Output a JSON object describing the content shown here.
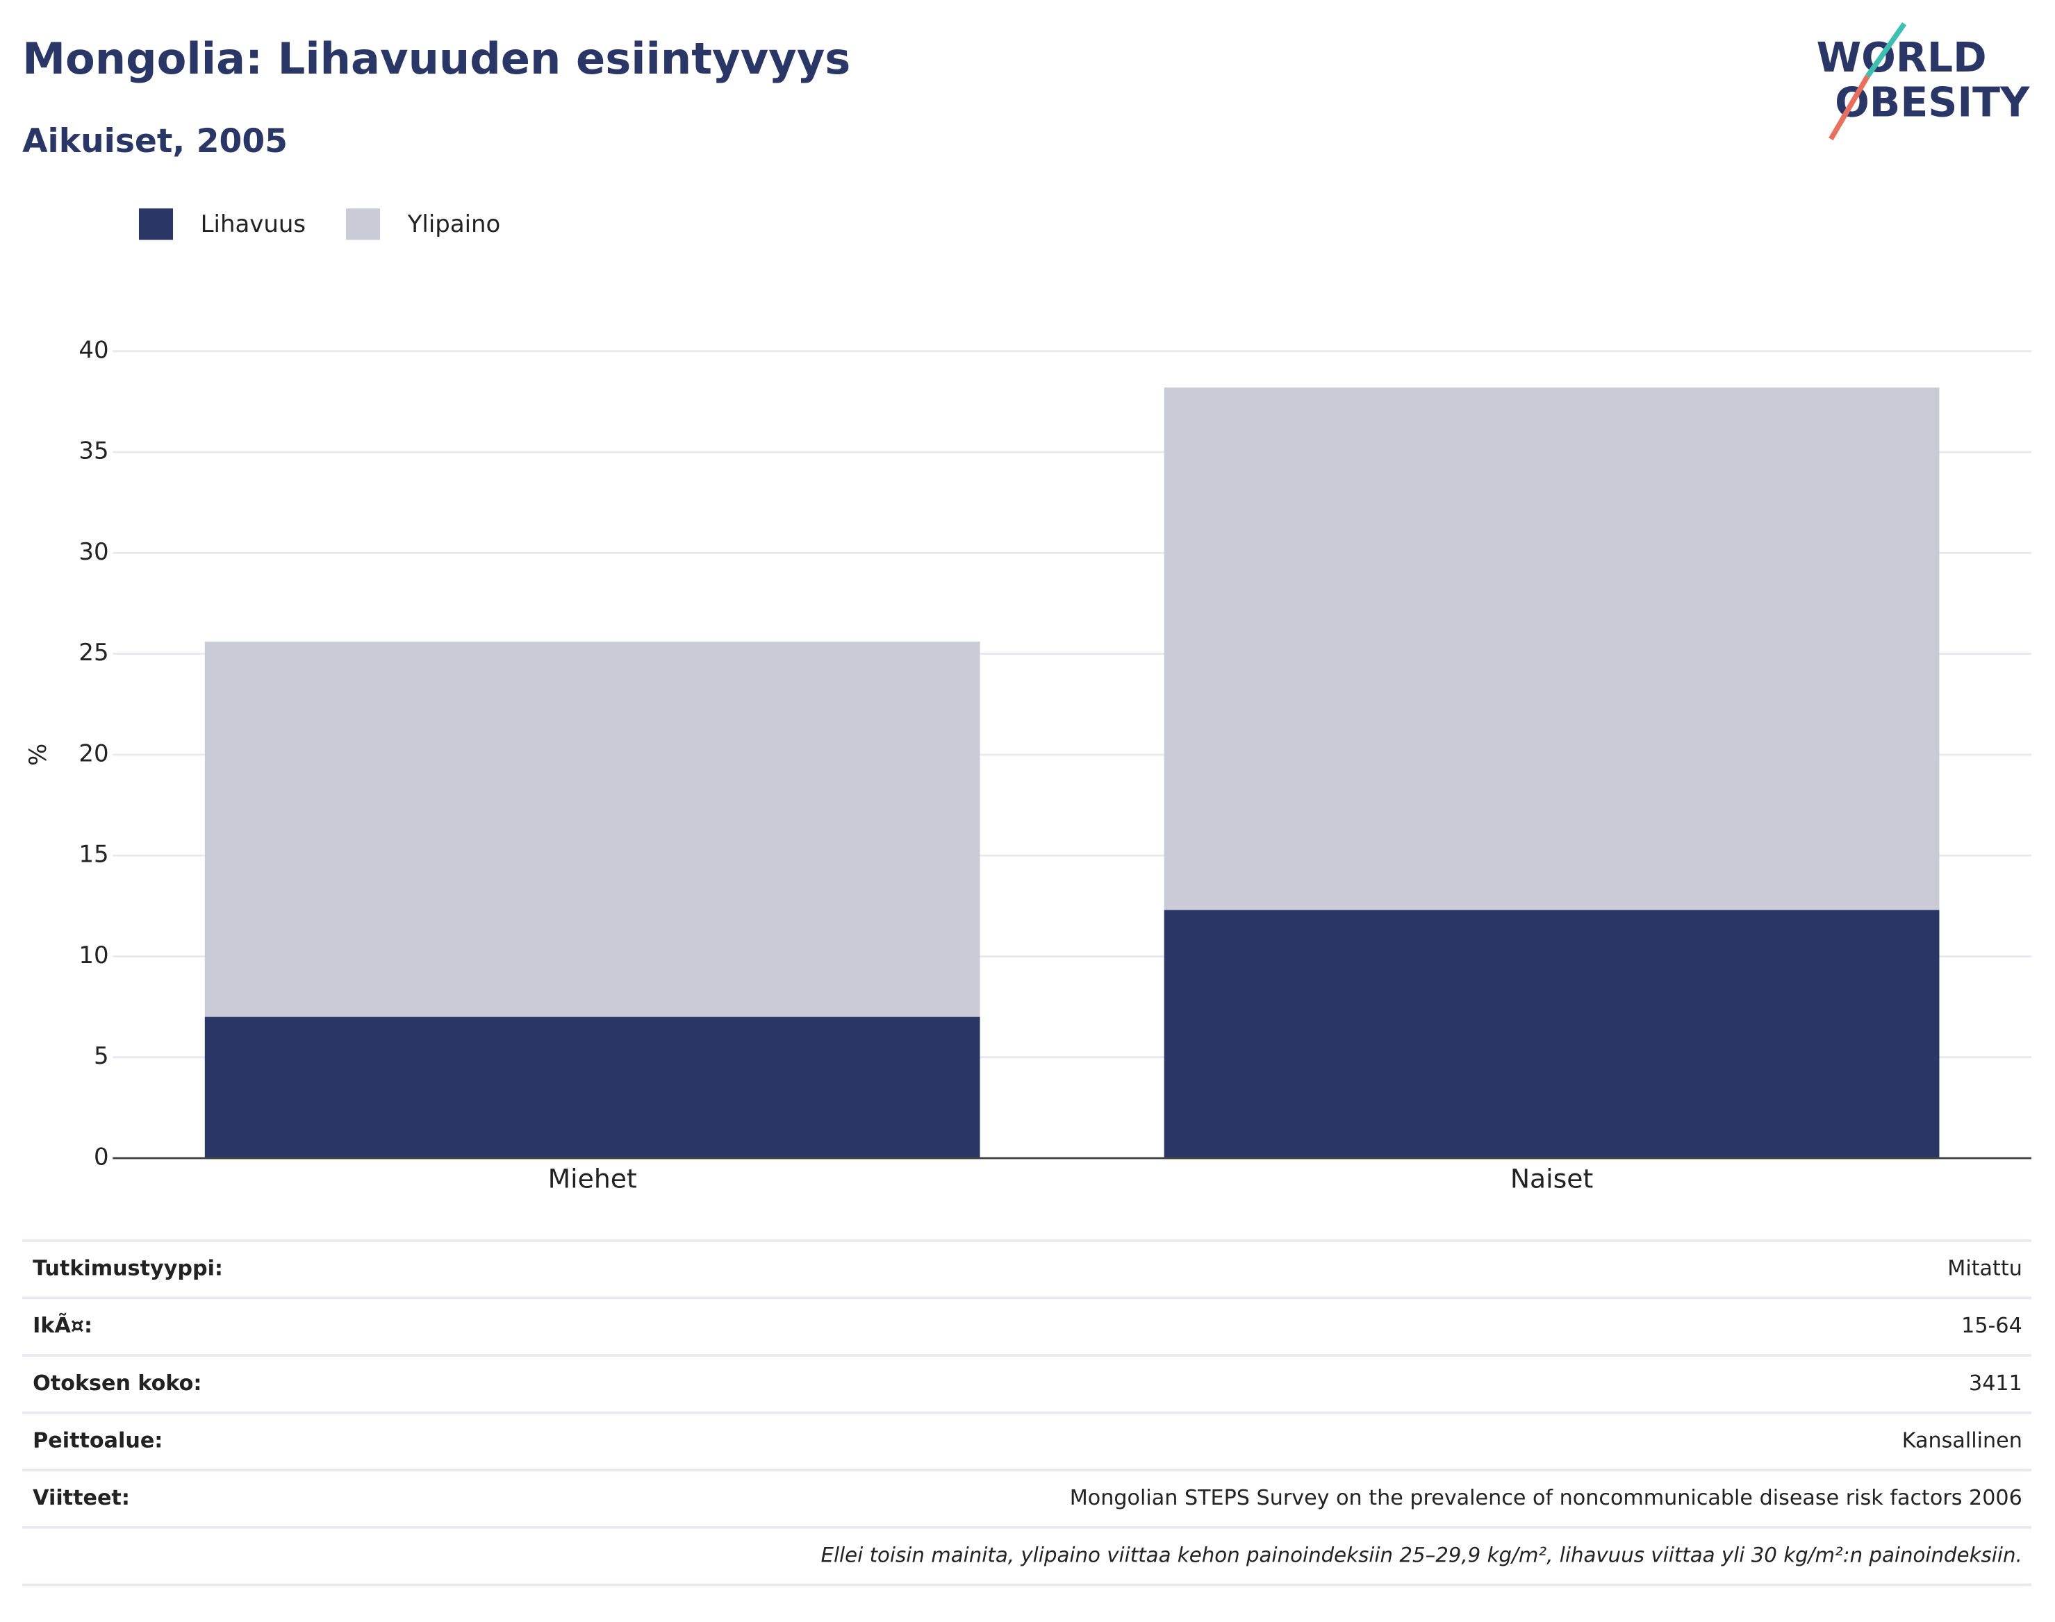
{
  "logo": {
    "line1": "WORLD",
    "line2": "OBESITY"
  },
  "chart_data": {
    "type": "bar",
    "stacked": true,
    "title": "Mongolia: Lihavuuden esiintyvyys",
    "subtitle": "Aikuiset, 2005",
    "y_label": "%",
    "categories": [
      "Miehet",
      "Naiset"
    ],
    "series": [
      {
        "name": "Lihavuus",
        "color": "#2a3665",
        "values": [
          7.0,
          12.3
        ]
      },
      {
        "name": "Ylipaino",
        "color": "#cacbd7",
        "values": [
          18.6,
          25.9
        ]
      }
    ],
    "ylim": [
      0,
      40
    ],
    "yticks": [
      0,
      5,
      10,
      15,
      20,
      25,
      30,
      35,
      40
    ],
    "grid": true,
    "legend": "top-left"
  },
  "table": {
    "rows": [
      [
        "Tutkimustyyppi:",
        "Mitattu"
      ],
      [
        "IkÃ¤:",
        "15-64"
      ],
      [
        "Otoksen koko:",
        "3411"
      ],
      [
        "Peittoalue:",
        "Kansallinen"
      ],
      [
        "Viitteet:",
        "Mongolian STEPS Survey on the prevalence of noncommunicable disease risk factors 2006"
      ]
    ],
    "note": "Ellei toisin mainita, ylipaino viittaa kehon painoindeksiin 25–29,9 kg/m², lihavuus viittaa yli 30 kg/m²:n painoindeksiin."
  }
}
